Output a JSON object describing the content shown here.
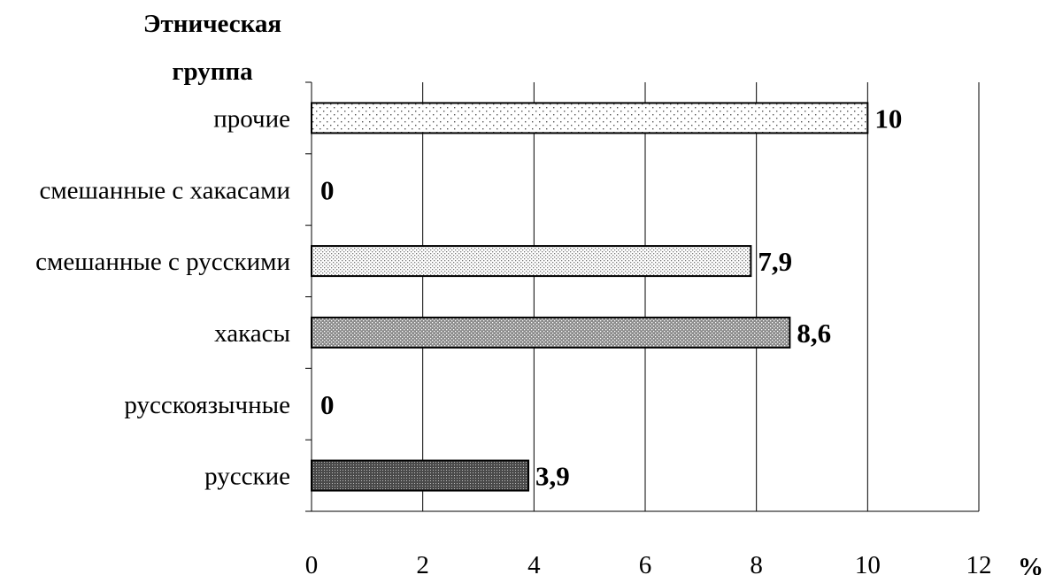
{
  "chart_data": {
    "type": "bar",
    "orientation": "horizontal",
    "y_title_line1": "Этническая",
    "y_title_line2": "группа",
    "x_unit": "%",
    "categories": [
      "прочие",
      "смешанные с хакасами",
      "смешанные с русскими",
      "хакасы",
      "русскоязычные",
      "русские"
    ],
    "values": [
      10,
      0,
      7.9,
      8.6,
      0,
      3.9
    ],
    "data_labels": [
      "10",
      "0",
      "7,9",
      "8,6",
      "0",
      "3,9"
    ],
    "x_ticks": [
      0,
      2,
      4,
      6,
      8,
      10,
      12
    ],
    "xlim": [
      0,
      12
    ],
    "grid": "vertical",
    "bar_fill_density": [
      "sparse-dots",
      "none",
      "light-dots",
      "medium-dots",
      "none",
      "dense-dots"
    ]
  }
}
